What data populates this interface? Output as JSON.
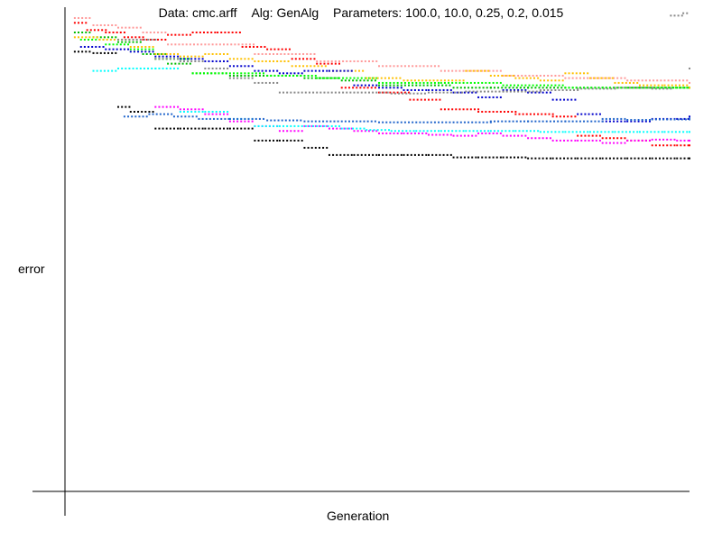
{
  "title": {
    "data": "Data: cmc.arff",
    "alg": "Alg: GenAlg",
    "params": "Parameters: 100.0, 10.0, 0.25, 0.2, 0.015"
  },
  "chart_data": {
    "type": "scatter",
    "xlabel": "Generation",
    "ylabel": "error",
    "xlim": [
      0,
      100
    ],
    "ylim": [
      0,
      1
    ],
    "grid": false,
    "series": [
      {
        "color": "#ff9999",
        "points": [
          [
            1,
            0.985
          ],
          [
            4,
            0.97
          ],
          [
            8,
            0.965
          ],
          [
            12,
            0.955
          ],
          [
            16,
            0.93
          ],
          [
            22,
            0.93
          ],
          [
            30,
            0.91
          ],
          [
            40,
            0.895
          ],
          [
            50,
            0.885
          ],
          [
            60,
            0.875
          ],
          [
            70,
            0.865
          ],
          [
            80,
            0.86
          ],
          [
            90,
            0.855
          ],
          [
            100,
            0.85
          ]
        ]
      },
      {
        "color": "#ff0000",
        "points": [
          [
            1,
            0.975
          ],
          [
            3,
            0.96
          ],
          [
            6,
            0.955
          ],
          [
            9,
            0.945
          ],
          [
            12,
            0.94
          ],
          [
            16,
            0.95
          ],
          [
            20,
            0.955
          ],
          [
            24,
            0.955
          ],
          [
            28,
            0.925
          ],
          [
            32,
            0.92
          ],
          [
            36,
            0.9
          ],
          [
            40,
            0.89
          ],
          [
            44,
            0.84
          ],
          [
            50,
            0.83
          ],
          [
            55,
            0.815
          ],
          [
            60,
            0.795
          ],
          [
            66,
            0.79
          ],
          [
            72,
            0.785
          ],
          [
            78,
            0.78
          ],
          [
            82,
            0.74
          ],
          [
            86,
            0.735
          ],
          [
            90,
            0.73
          ],
          [
            94,
            0.72
          ],
          [
            98,
            0.72
          ],
          [
            100,
            0.72
          ]
        ]
      },
      {
        "color": "#00bb00",
        "points": [
          [
            1,
            0.955
          ],
          [
            4,
            0.945
          ],
          [
            8,
            0.935
          ],
          [
            12,
            0.91
          ],
          [
            16,
            0.89
          ],
          [
            20,
            0.87
          ],
          [
            26,
            0.865
          ],
          [
            32,
            0.865
          ],
          [
            38,
            0.86
          ],
          [
            44,
            0.855
          ],
          [
            50,
            0.845
          ],
          [
            56,
            0.845
          ],
          [
            62,
            0.84
          ],
          [
            68,
            0.84
          ],
          [
            74,
            0.84
          ],
          [
            80,
            0.84
          ],
          [
            86,
            0.84
          ],
          [
            92,
            0.84
          ],
          [
            100,
            0.84
          ]
        ]
      },
      {
        "color": "#00ff00",
        "points": [
          [
            2,
            0.94
          ],
          [
            6,
            0.93
          ],
          [
            10,
            0.92
          ],
          [
            14,
            0.9
          ],
          [
            20,
            0.87
          ],
          [
            26,
            0.87
          ],
          [
            32,
            0.865
          ],
          [
            40,
            0.86
          ],
          [
            50,
            0.85
          ],
          [
            60,
            0.85
          ],
          [
            70,
            0.845
          ],
          [
            80,
            0.84
          ],
          [
            90,
            0.84
          ],
          [
            100,
            0.84
          ]
        ]
      },
      {
        "color": "#ffc000",
        "points": [
          [
            1,
            0.945
          ],
          [
            5,
            0.94
          ],
          [
            10,
            0.925
          ],
          [
            14,
            0.91
          ],
          [
            18,
            0.905
          ],
          [
            22,
            0.91
          ],
          [
            26,
            0.9
          ],
          [
            30,
            0.895
          ],
          [
            36,
            0.885
          ],
          [
            42,
            0.875
          ],
          [
            48,
            0.86
          ],
          [
            54,
            0.855
          ],
          [
            60,
            0.855
          ],
          [
            64,
            0.875
          ],
          [
            68,
            0.865
          ],
          [
            72,
            0.86
          ],
          [
            76,
            0.855
          ],
          [
            80,
            0.87
          ],
          [
            84,
            0.86
          ],
          [
            88,
            0.85
          ],
          [
            92,
            0.845
          ],
          [
            96,
            0.845
          ],
          [
            100,
            0.84
          ]
        ]
      },
      {
        "color": "#0000cc",
        "points": [
          [
            2,
            0.925
          ],
          [
            6,
            0.92
          ],
          [
            10,
            0.915
          ],
          [
            14,
            0.905
          ],
          [
            18,
            0.9
          ],
          [
            22,
            0.895
          ],
          [
            26,
            0.885
          ],
          [
            30,
            0.875
          ],
          [
            34,
            0.87
          ],
          [
            38,
            0.875
          ],
          [
            42,
            0.875
          ],
          [
            46,
            0.845
          ],
          [
            50,
            0.84
          ],
          [
            54,
            0.835
          ],
          [
            58,
            0.835
          ],
          [
            62,
            0.83
          ],
          [
            66,
            0.82
          ],
          [
            70,
            0.835
          ],
          [
            74,
            0.83
          ],
          [
            78,
            0.815
          ],
          [
            82,
            0.785
          ],
          [
            86,
            0.77
          ],
          [
            90,
            0.77
          ],
          [
            94,
            0.775
          ],
          [
            98,
            0.775
          ],
          [
            100,
            0.78
          ]
        ]
      },
      {
        "color": "#000000",
        "points": [
          [
            1,
            0.915
          ],
          [
            4,
            0.912
          ],
          [
            8,
            0.8
          ],
          [
            10,
            0.79
          ],
          [
            14,
            0.755
          ],
          [
            18,
            0.755
          ],
          [
            22,
            0.755
          ],
          [
            26,
            0.755
          ],
          [
            30,
            0.73
          ],
          [
            34,
            0.73
          ],
          [
            38,
            0.715
          ],
          [
            42,
            0.7
          ],
          [
            46,
            0.7
          ],
          [
            50,
            0.7
          ],
          [
            54,
            0.7
          ],
          [
            58,
            0.7
          ],
          [
            62,
            0.695
          ],
          [
            66,
            0.695
          ],
          [
            70,
            0.695
          ],
          [
            74,
            0.693
          ],
          [
            78,
            0.693
          ],
          [
            82,
            0.693
          ],
          [
            86,
            0.693
          ],
          [
            90,
            0.693
          ],
          [
            94,
            0.693
          ],
          [
            98,
            0.693
          ],
          [
            100,
            0.693
          ]
        ]
      },
      {
        "color": "#ff00ff",
        "points": [
          [
            14,
            0.8
          ],
          [
            18,
            0.795
          ],
          [
            22,
            0.785
          ],
          [
            26,
            0.77
          ],
          [
            30,
            0.76
          ],
          [
            34,
            0.75
          ],
          [
            38,
            0.76
          ],
          [
            42,
            0.755
          ],
          [
            46,
            0.75
          ],
          [
            50,
            0.745
          ],
          [
            54,
            0.745
          ],
          [
            58,
            0.742
          ],
          [
            62,
            0.74
          ],
          [
            66,
            0.745
          ],
          [
            70,
            0.74
          ],
          [
            74,
            0.735
          ],
          [
            78,
            0.73
          ],
          [
            82,
            0.73
          ],
          [
            86,
            0.725
          ],
          [
            90,
            0.73
          ],
          [
            94,
            0.732
          ],
          [
            98,
            0.73
          ],
          [
            100,
            0.73
          ]
        ]
      },
      {
        "color": "#00ffff",
        "points": [
          [
            4,
            0.875
          ],
          [
            8,
            0.88
          ],
          [
            14,
            0.88
          ],
          [
            18,
            0.79
          ],
          [
            22,
            0.79
          ],
          [
            26,
            0.775
          ],
          [
            30,
            0.76
          ],
          [
            34,
            0.76
          ],
          [
            40,
            0.76
          ],
          [
            44,
            0.755
          ],
          [
            48,
            0.752
          ],
          [
            52,
            0.75
          ],
          [
            56,
            0.75
          ],
          [
            60,
            0.75
          ],
          [
            64,
            0.75
          ],
          [
            68,
            0.75
          ],
          [
            72,
            0.75
          ],
          [
            76,
            0.748
          ],
          [
            80,
            0.748
          ],
          [
            84,
            0.748
          ],
          [
            88,
            0.748
          ],
          [
            92,
            0.748
          ],
          [
            96,
            0.748
          ],
          [
            100,
            0.748
          ]
        ]
      },
      {
        "color": "#2266cc",
        "points": [
          [
            9,
            0.78
          ],
          [
            13,
            0.785
          ],
          [
            17,
            0.78
          ],
          [
            21,
            0.775
          ],
          [
            26,
            0.775
          ],
          [
            32,
            0.772
          ],
          [
            38,
            0.77
          ],
          [
            44,
            0.77
          ],
          [
            50,
            0.768
          ],
          [
            56,
            0.768
          ],
          [
            62,
            0.768
          ],
          [
            68,
            0.77
          ],
          [
            74,
            0.77
          ],
          [
            80,
            0.77
          ],
          [
            86,
            0.775
          ],
          [
            90,
            0.773
          ],
          [
            94,
            0.774
          ],
          [
            100,
            0.776
          ]
        ]
      },
      {
        "color": "#888888",
        "points": [
          [
            8,
            0.94
          ],
          [
            14,
            0.9
          ],
          [
            18,
            0.895
          ],
          [
            22,
            0.88
          ],
          [
            26,
            0.86
          ],
          [
            30,
            0.85
          ],
          [
            34,
            0.83
          ],
          [
            40,
            0.83
          ],
          [
            46,
            0.83
          ],
          [
            52,
            0.828
          ],
          [
            58,
            0.83
          ],
          [
            64,
            0.832
          ],
          [
            70,
            0.832
          ],
          [
            76,
            0.835
          ],
          [
            82,
            0.838
          ],
          [
            88,
            0.84
          ],
          [
            94,
            0.838
          ],
          [
            97,
            0.99
          ],
          [
            99,
            0.995
          ],
          [
            100,
            0.88
          ]
        ]
      }
    ]
  }
}
